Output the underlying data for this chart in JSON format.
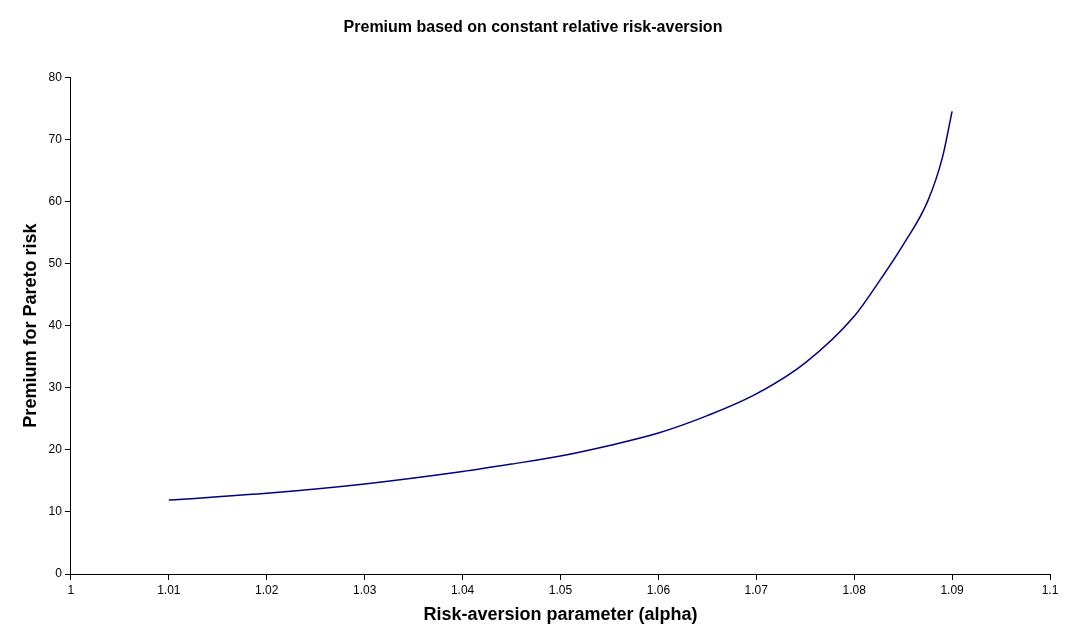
{
  "chart_data": {
    "type": "line",
    "title": "Premium based on constant relative risk-aversion",
    "xlabel": "Risk-aversion parameter (alpha)",
    "ylabel": "Premium for Pareto risk",
    "series": [
      {
        "color": "#000080",
        "x": [
          1.01,
          1.02,
          1.03,
          1.04,
          1.045,
          1.05,
          1.055,
          1.06,
          1.065,
          1.07,
          1.075,
          1.08,
          1.0825,
          1.085,
          1.0875,
          1.089,
          1.09
        ],
        "values": [
          11.9,
          13.0,
          14.5,
          16.5,
          17.7,
          19.0,
          20.7,
          22.7,
          25.5,
          29.0,
          34.0,
          41.5,
          47,
          53,
          60,
          67,
          74.5
        ]
      }
    ],
    "xlim": [
      1,
      1.1
    ],
    "xticks": [
      {
        "value": 1,
        "label": "1"
      },
      {
        "value": 1.01,
        "label": "1.01"
      },
      {
        "value": 1.02,
        "label": "1.02"
      },
      {
        "value": 1.03,
        "label": "1.03"
      },
      {
        "value": 1.04,
        "label": "1.04"
      },
      {
        "value": 1.05,
        "label": "1.05"
      },
      {
        "value": 1.06,
        "label": "1.06"
      },
      {
        "value": 1.07,
        "label": "1.07"
      },
      {
        "value": 1.08,
        "label": "1.08"
      },
      {
        "value": 1.09,
        "label": "1.09"
      },
      {
        "value": 1.1,
        "label": "1.1"
      }
    ],
    "ylim": [
      0,
      80
    ],
    "yticks": [
      0,
      10,
      20,
      30,
      40,
      50,
      60,
      70,
      80
    ],
    "grid": false,
    "legend": false,
    "marker": "none",
    "line_style": "solid"
  }
}
